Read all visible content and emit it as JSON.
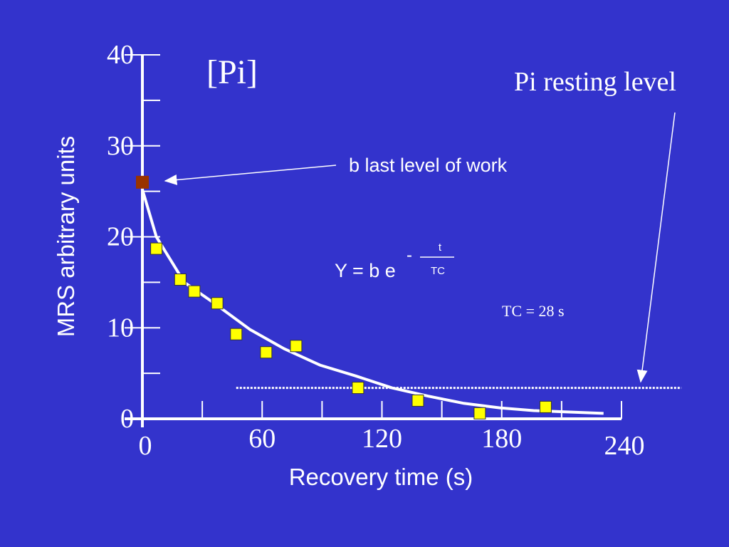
{
  "chart_data": {
    "type": "scatter",
    "title": "[Pi]",
    "x_label": "Recovery time (s)",
    "y_label": "MRS arbitrary units",
    "xlim": [
      0,
      240
    ],
    "ylim": [
      0,
      40
    ],
    "xticks": [
      0,
      60,
      120,
      180,
      240
    ],
    "yticks": [
      0,
      10,
      20,
      30,
      40
    ],
    "xminor_ticks": [
      30,
      90,
      150,
      210
    ],
    "yminor_ticks": [
      5,
      15,
      25,
      35
    ],
    "initial_point": {
      "x": 0,
      "value": 26,
      "color": "#993300"
    },
    "series": [
      {
        "color": "#ffff00",
        "x": [
          7,
          19,
          26,
          37.5,
          47,
          62,
          77,
          108,
          138,
          169,
          202
        ],
        "values": [
          18.7,
          15.3,
          14,
          12.7,
          9.3,
          7.3,
          8,
          3.4,
          2,
          0.6,
          1.3
        ]
      }
    ],
    "fit_curve": {
      "color": "#ffffff",
      "x": [
        0,
        7,
        21,
        36,
        54,
        71,
        89,
        107,
        125,
        143,
        161,
        179,
        196,
        231
      ],
      "values": [
        25.2,
        20,
        15,
        12.7,
        9.8,
        7.7,
        5.9,
        4.7,
        3.4,
        2.5,
        1.7,
        1.2,
        0.9,
        0.6
      ]
    },
    "resting_level": {
      "value": 3.4,
      "x": [
        47,
        270
      ],
      "label": "Pi resting level"
    },
    "annotation_b": "b  last level of work",
    "formula": {
      "main": "Y = b e",
      "sign": "-",
      "numerator": "t",
      "denominator": "TC"
    },
    "tc_label": "TC = 28 s"
  }
}
